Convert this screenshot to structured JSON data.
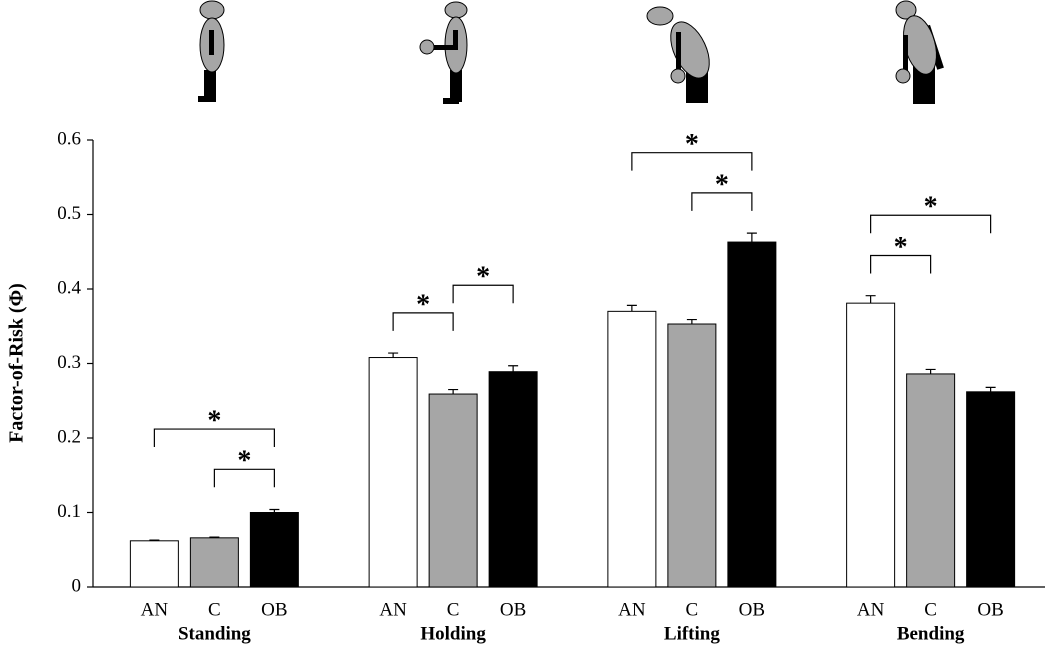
{
  "chart_data": {
    "type": "bar",
    "y_label": "Factor-of-Risk (Φ)",
    "categories": [
      "Standing",
      "Holding",
      "Lifting",
      "Bending"
    ],
    "series": [
      {
        "name": "AN",
        "color": "#ffffff",
        "values": [
          0.062,
          0.308,
          0.37,
          0.381
        ],
        "errors": [
          0.001,
          0.006,
          0.008,
          0.01
        ]
      },
      {
        "name": "C",
        "color": "#a6a6a6",
        "values": [
          0.066,
          0.259,
          0.353,
          0.286
        ],
        "errors": [
          0.001,
          0.006,
          0.006,
          0.006
        ]
      },
      {
        "name": "OB",
        "color": "#000000",
        "values": [
          0.1,
          0.289,
          0.463,
          0.262
        ],
        "errors": [
          0.004,
          0.008,
          0.012,
          0.006
        ]
      }
    ],
    "significance": [
      {
        "group": 0,
        "pair": [
          1,
          2
        ],
        "label": "*"
      },
      {
        "group": 0,
        "pair": [
          0,
          2
        ],
        "label": "*"
      },
      {
        "group": 1,
        "pair": [
          0,
          1
        ],
        "label": "*"
      },
      {
        "group": 1,
        "pair": [
          1,
          2
        ],
        "label": "*"
      },
      {
        "group": 2,
        "pair": [
          1,
          2
        ],
        "label": "*"
      },
      {
        "group": 2,
        "pair": [
          0,
          2
        ],
        "label": "*"
      },
      {
        "group": 3,
        "pair": [
          0,
          1
        ],
        "label": "*"
      },
      {
        "group": 3,
        "pair": [
          0,
          2
        ],
        "label": "*"
      }
    ],
    "ylim": [
      0,
      0.6
    ],
    "yticks": [
      0,
      0.1,
      0.2,
      0.3,
      0.4,
      0.5,
      0.6
    ],
    "grid": false
  }
}
